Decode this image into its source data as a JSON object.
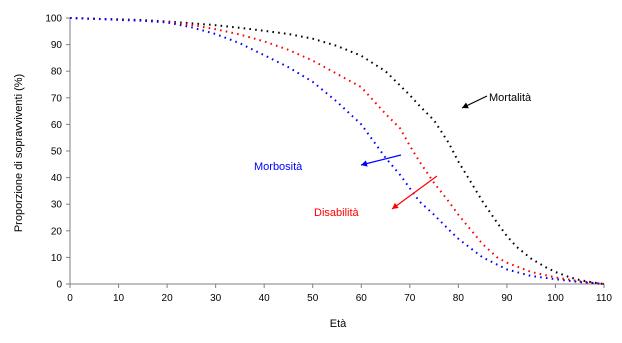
{
  "chart_data": {
    "type": "scatter",
    "xlabel": "Età",
    "ylabel": "Proporzione di sopravviventi  (%)",
    "xlim": [
      0,
      110
    ],
    "ylim": [
      0,
      100
    ],
    "xticks": [
      0,
      10,
      20,
      30,
      40,
      50,
      60,
      70,
      80,
      90,
      100,
      110
    ],
    "yticks": [
      0,
      10,
      20,
      30,
      40,
      50,
      60,
      70,
      80,
      90,
      100
    ],
    "grid": false,
    "series": [
      {
        "name": "Mortalità",
        "color": "#000000",
        "x": [
          0,
          5,
          10,
          15,
          20,
          25,
          30,
          35,
          40,
          45,
          50,
          55,
          60,
          65,
          70,
          72,
          75,
          78,
          80,
          82,
          85,
          88,
          90,
          92,
          95,
          98,
          100,
          103,
          105,
          108,
          110
        ],
        "y": [
          100,
          99.7,
          99.5,
          99.2,
          98.7,
          98,
          97.3,
          96.3,
          95.2,
          94,
          92.2,
          89.5,
          85.8,
          80,
          71,
          67,
          61.5,
          53,
          46,
          40,
          31,
          23,
          18,
          14,
          9.5,
          6.3,
          4.5,
          2.5,
          1.5,
          0.5,
          0
        ]
      },
      {
        "name": "Disabilità",
        "color": "#ff0000",
        "x": [
          0,
          5,
          10,
          15,
          20,
          25,
          30,
          35,
          40,
          45,
          50,
          55,
          60,
          65,
          68,
          70,
          72,
          75,
          78,
          80,
          85,
          88,
          90,
          95,
          100,
          105,
          110
        ],
        "y": [
          100,
          99.7,
          99.4,
          99,
          98.5,
          97.4,
          95.8,
          93.8,
          91.2,
          88,
          84,
          79,
          74,
          64,
          58.5,
          52,
          46,
          38,
          31,
          26,
          15,
          10,
          8,
          4.5,
          2.5,
          1,
          0
        ]
      },
      {
        "name": "Morbosità",
        "color": "#0000ff",
        "x": [
          0,
          5,
          10,
          15,
          20,
          25,
          30,
          35,
          40,
          45,
          50,
          55,
          60,
          65,
          68,
          70,
          72,
          75,
          78,
          80,
          85,
          90,
          95,
          100,
          105,
          110
        ],
        "y": [
          100,
          99.7,
          99.3,
          99,
          98.3,
          96.5,
          94,
          90.5,
          86,
          81.5,
          76,
          68.5,
          60,
          47.5,
          41,
          36,
          31,
          26,
          20.5,
          17,
          10,
          5.5,
          3,
          1.8,
          0.7,
          0
        ]
      }
    ],
    "annotations": [
      {
        "text": "Mortalità",
        "color": "#000000"
      },
      {
        "text": "Disabilità",
        "color": "#ff0000"
      },
      {
        "text": "Morbosità",
        "color": "#0000ff"
      }
    ]
  }
}
